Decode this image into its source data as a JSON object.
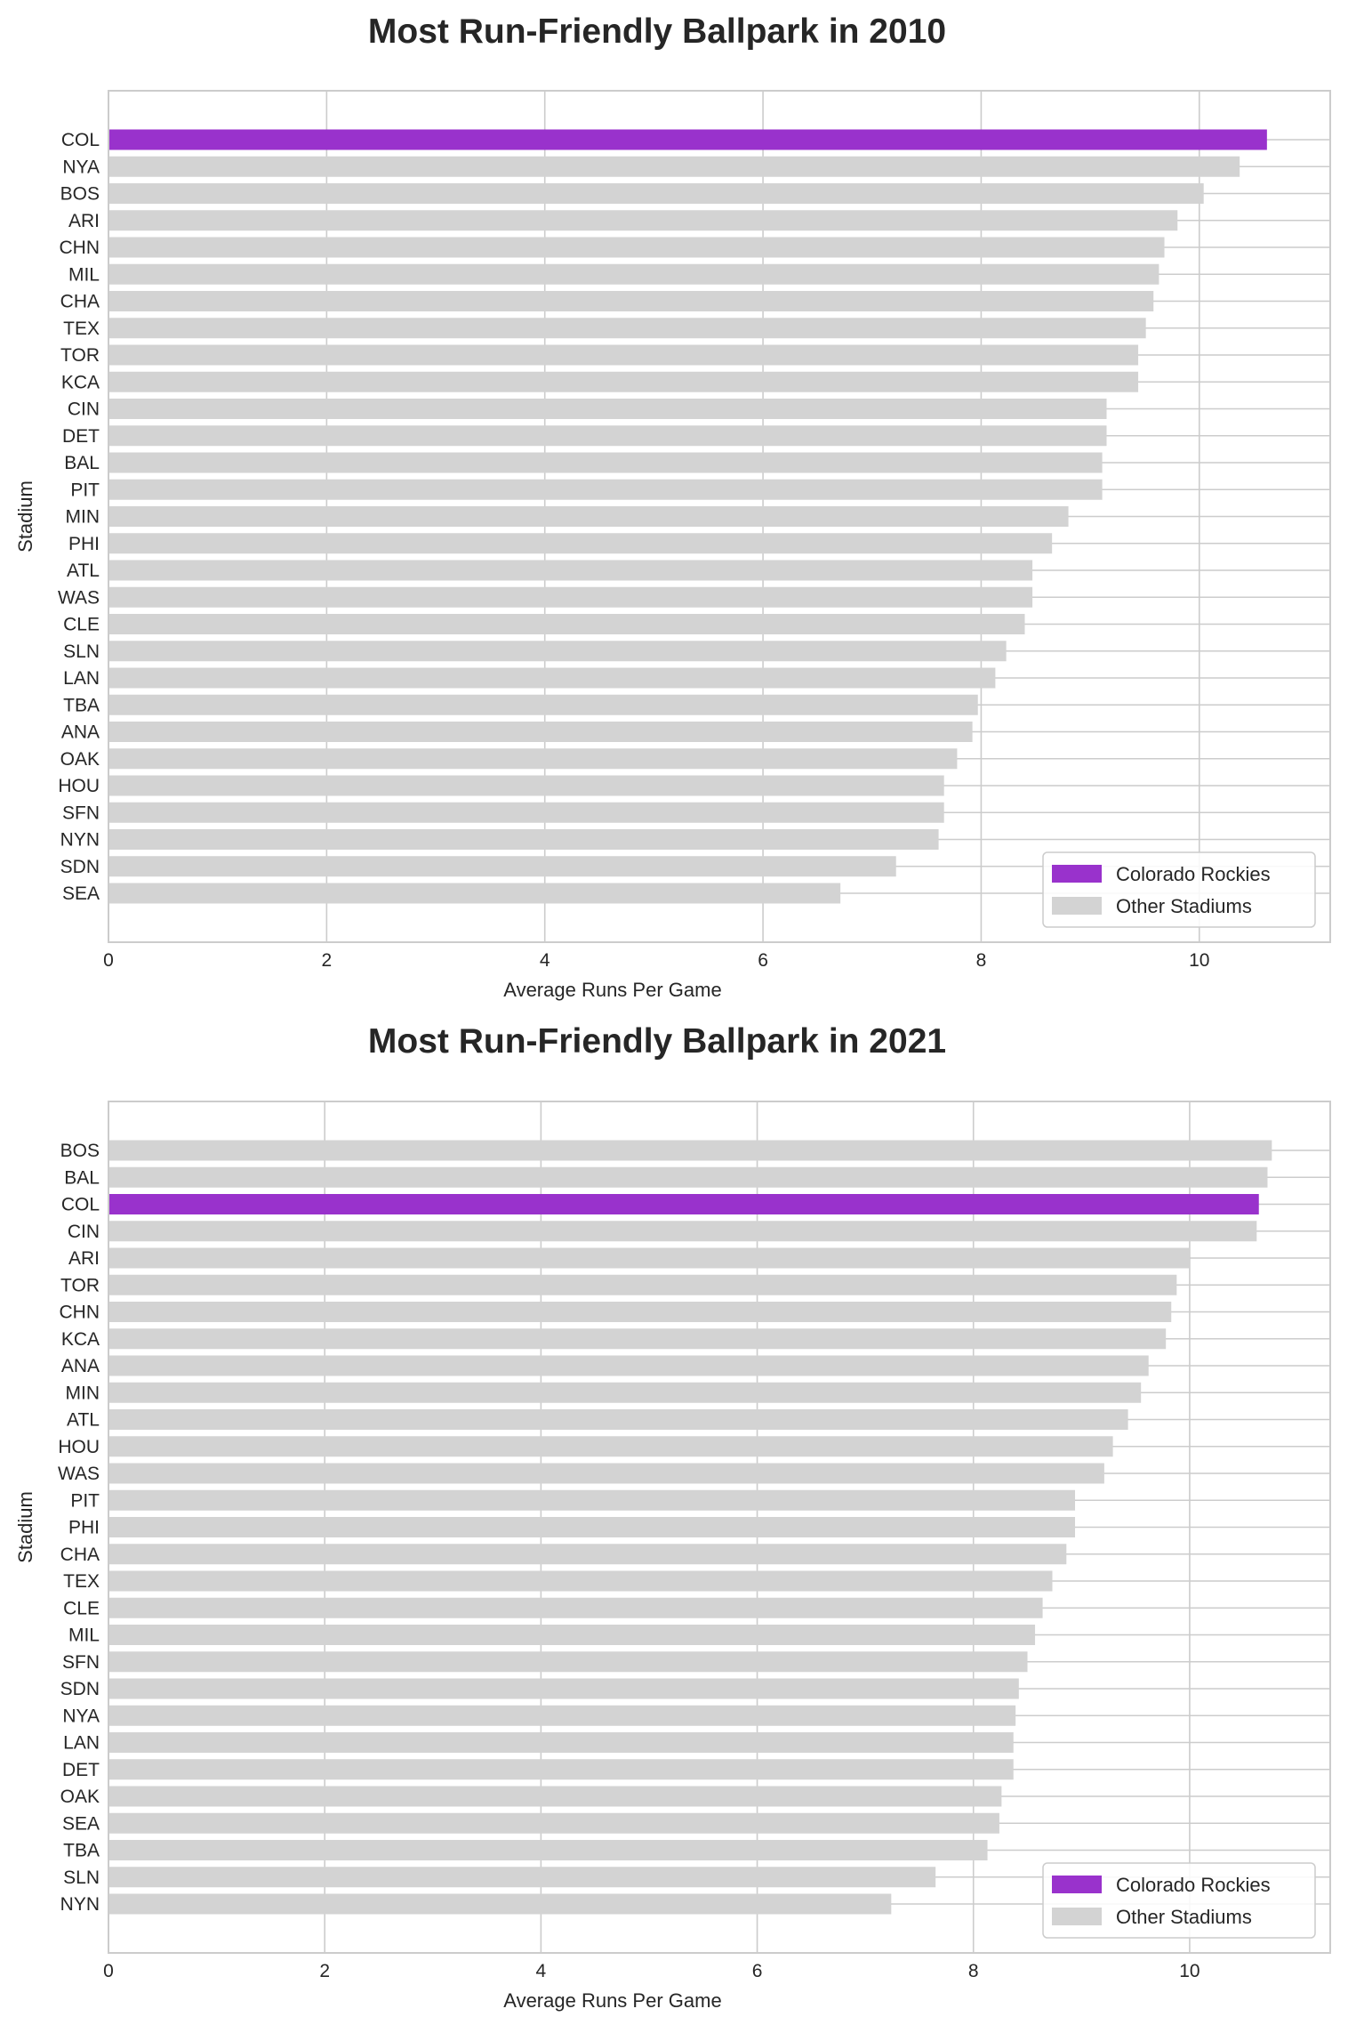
{
  "chart_data": [
    {
      "type": "bar",
      "orientation": "horizontal",
      "title": "Most Run-Friendly Ballpark in 2010",
      "xlabel": "Average Runs Per Game",
      "ylabel": "Stadium",
      "xlim": [
        0,
        11.2
      ],
      "xticks": [
        0,
        2,
        4,
        6,
        8,
        10
      ],
      "grid": true,
      "legend_position": "lower-right",
      "highlight": "COL",
      "legend": [
        "Colorado Rockies",
        "Other Stadiums"
      ],
      "colors": {
        "highlight": "#9932CC",
        "other": "#D3D3D3"
      },
      "categories": [
        "COL",
        "NYA",
        "BOS",
        "ARI",
        "CHN",
        "MIL",
        "CHA",
        "TEX",
        "TOR",
        "KCA",
        "CIN",
        "DET",
        "BAL",
        "PIT",
        "MIN",
        "PHI",
        "ATL",
        "WAS",
        "CLE",
        "SLN",
        "LAN",
        "TBA",
        "ANA",
        "OAK",
        "HOU",
        "SFN",
        "NYN",
        "SDN",
        "SEA"
      ],
      "values": [
        10.62,
        10.37,
        10.04,
        9.8,
        9.68,
        9.63,
        9.58,
        9.51,
        9.44,
        9.44,
        9.15,
        9.15,
        9.11,
        9.11,
        8.8,
        8.65,
        8.47,
        8.47,
        8.4,
        8.23,
        8.13,
        7.97,
        7.92,
        7.78,
        7.66,
        7.66,
        7.61,
        7.22,
        6.71
      ]
    },
    {
      "type": "bar",
      "orientation": "horizontal",
      "title": "Most Run-Friendly Ballpark in 2021",
      "xlabel": "Average Runs Per Game",
      "ylabel": "Stadium",
      "xlim": [
        0,
        11.3
      ],
      "xticks": [
        0,
        2,
        4,
        6,
        8,
        10
      ],
      "grid": true,
      "legend_position": "lower-right",
      "highlight": "COL",
      "legend": [
        "Colorado Rockies",
        "Other Stadiums"
      ],
      "colors": {
        "highlight": "#9932CC",
        "other": "#D3D3D3"
      },
      "categories": [
        "BOS",
        "BAL",
        "COL",
        "CIN",
        "ARI",
        "TOR",
        "CHN",
        "KCA",
        "ANA",
        "MIN",
        "ATL",
        "HOU",
        "WAS",
        "PIT",
        "PHI",
        "CHA",
        "TEX",
        "CLE",
        "MIL",
        "SFN",
        "SDN",
        "NYA",
        "LAN",
        "DET",
        "OAK",
        "SEA",
        "TBA",
        "SLN",
        "NYN"
      ],
      "values": [
        10.76,
        10.72,
        10.64,
        10.62,
        10.0,
        9.88,
        9.83,
        9.78,
        9.62,
        9.55,
        9.43,
        9.29,
        9.21,
        8.94,
        8.94,
        8.86,
        8.73,
        8.64,
        8.57,
        8.5,
        8.42,
        8.39,
        8.37,
        8.37,
        8.26,
        8.24,
        8.13,
        7.65,
        7.24
      ]
    }
  ]
}
